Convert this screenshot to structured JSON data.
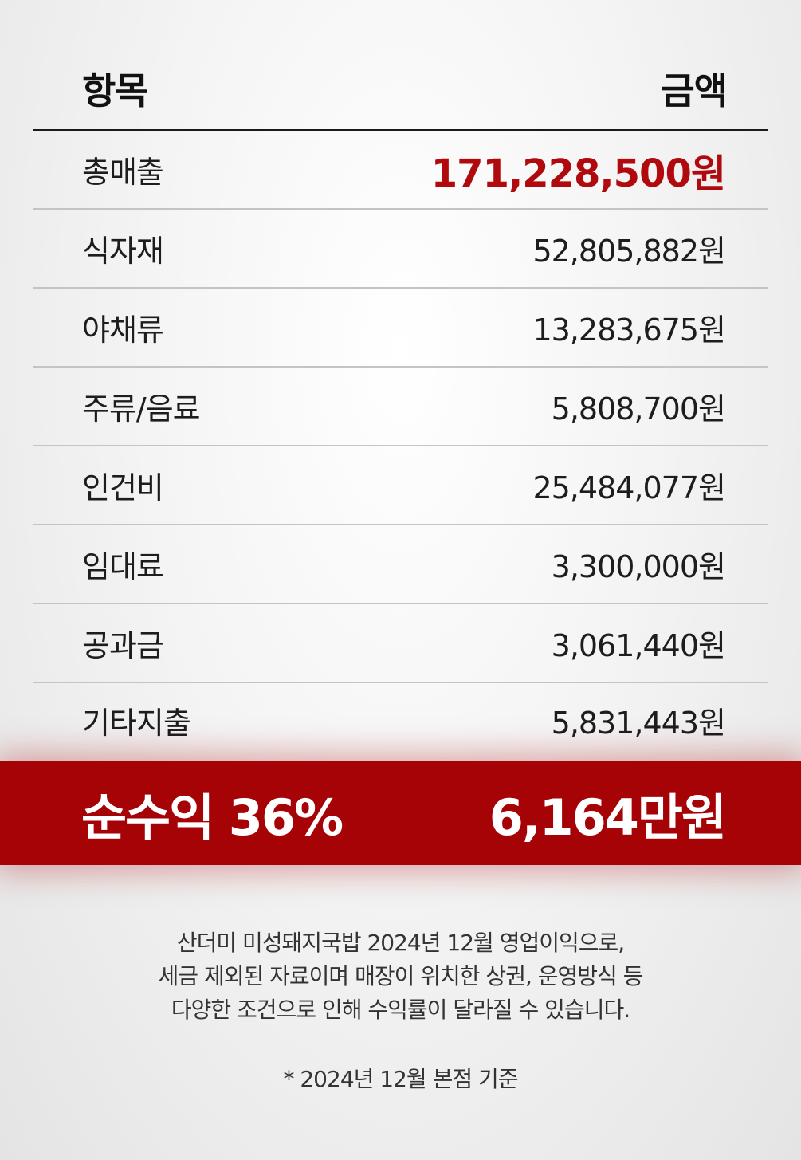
{
  "header": {
    "item_label": "항목",
    "amount_label": "금액"
  },
  "rows": [
    {
      "label": "총매출",
      "amount": "171,228,500원"
    },
    {
      "label": "식자재",
      "amount": "52,805,882원"
    },
    {
      "label": "야채류",
      "amount": "13,283,675원"
    },
    {
      "label": "주류/음료",
      "amount": "5,808,700원"
    },
    {
      "label": "인건비",
      "amount": "25,484,077원"
    },
    {
      "label": "임대료",
      "amount": "3,300,000원"
    },
    {
      "label": "공과금",
      "amount": "3,061,440원"
    },
    {
      "label": "기타지출",
      "amount": "5,831,443원"
    }
  ],
  "summary": {
    "label": "순수익 36%",
    "amount": "6,164만원",
    "color": "#a50305"
  },
  "note": {
    "lines": [
      "산더미 미성돼지국밥 2024년 12월 영업이익으로,",
      "세금 제외된 자료이며 매장이 위치한 상권, 운영방식 등",
      "다양한 조건으로 인해 수익률이 달라질 수 있습니다."
    ],
    "basis": "* 2024년 12월 본점 기준"
  }
}
